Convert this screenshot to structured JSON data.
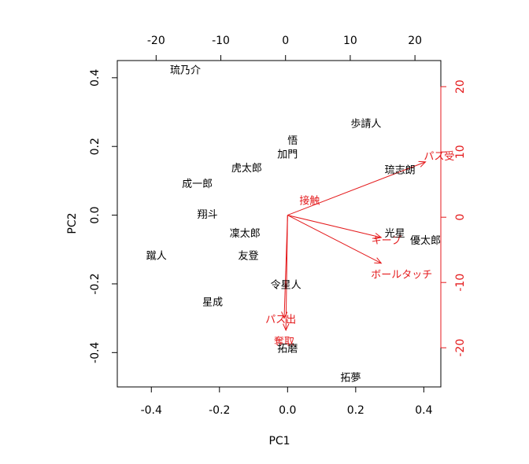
{
  "chart_data": {
    "type": "scatter",
    "subtype": "biplot",
    "xlabel": "PC1",
    "ylabel": "PC2",
    "xlim": [
      -0.5,
      0.45
    ],
    "ylim": [
      -0.5,
      0.45
    ],
    "x_ticks": [
      -0.4,
      -0.2,
      0.0,
      0.2,
      0.4
    ],
    "x_tick_labels": [
      "-0.4",
      "-0.2",
      "0.0",
      "0.2",
      "0.4"
    ],
    "y_ticks": [
      -0.4,
      -0.2,
      0.0,
      0.2,
      0.4
    ],
    "y_tick_labels": [
      "-0.4",
      "-0.2",
      "0.0",
      "0.2",
      "0.4"
    ],
    "top_axis": {
      "ticks": [
        -20,
        -10,
        0,
        10,
        20
      ],
      "tick_labels": [
        "-20",
        "-10",
        "0",
        "10",
        "20"
      ],
      "color": "#000000"
    },
    "right_axis": {
      "ticks": [
        -20,
        -10,
        0,
        10,
        20
      ],
      "tick_labels": [
        "-20",
        "-10",
        "0",
        "10",
        "20"
      ],
      "color": "#e41a1c"
    },
    "secondary_lim": [
      -26,
      24
    ],
    "grid": false,
    "legend": "none",
    "point_color": "#000000",
    "arrow_color": "#e41a1c",
    "points": [
      {
        "label": "琉乃介",
        "x": -0.3,
        "y": 0.42
      },
      {
        "label": "歩請人",
        "x": 0.23,
        "y": 0.265
      },
      {
        "label": "悟",
        "x": 0.015,
        "y": 0.215
      },
      {
        "label": "加門",
        "x": 0.0,
        "y": 0.175
      },
      {
        "label": "虎太郎",
        "x": -0.12,
        "y": 0.135
      },
      {
        "label": "琉志朗",
        "x": 0.33,
        "y": 0.13
      },
      {
        "label": "成一郎",
        "x": -0.265,
        "y": 0.09
      },
      {
        "label": "翔斗",
        "x": -0.235,
        "y": 0.0
      },
      {
        "label": "光星",
        "x": 0.315,
        "y": -0.055
      },
      {
        "label": "凜太郎",
        "x": -0.125,
        "y": -0.055
      },
      {
        "label": "優太郎",
        "x": 0.405,
        "y": -0.075
      },
      {
        "label": "蹴人",
        "x": -0.385,
        "y": -0.12
      },
      {
        "label": "友登",
        "x": -0.115,
        "y": -0.12
      },
      {
        "label": "令星人",
        "x": -0.005,
        "y": -0.205
      },
      {
        "label": "星成",
        "x": -0.22,
        "y": -0.255
      },
      {
        "label": "拓磨",
        "x": 0.0,
        "y": -0.39
      },
      {
        "label": "拓夢",
        "x": 0.185,
        "y": -0.475
      }
    ],
    "variables": [
      {
        "label": "パス受",
        "x": 0.405,
        "y": 0.155,
        "label_x": 0.445,
        "label_y": 0.17
      },
      {
        "label": "接触",
        "x": 0.0,
        "y": 0.0,
        "label_x": 0.065,
        "label_y": 0.04
      },
      {
        "label": "キープ",
        "x": 0.275,
        "y": -0.065,
        "label_x": 0.29,
        "label_y": -0.075
      },
      {
        "label": "ボールタッチ",
        "x": 0.275,
        "y": -0.14,
        "label_x": 0.335,
        "label_y": -0.175
      },
      {
        "label": "パス出",
        "x": -0.01,
        "y": -0.3,
        "label_x": -0.02,
        "label_y": -0.305
      },
      {
        "label": "奪取",
        "x": -0.005,
        "y": -0.335,
        "label_x": -0.01,
        "label_y": -0.37
      }
    ]
  }
}
